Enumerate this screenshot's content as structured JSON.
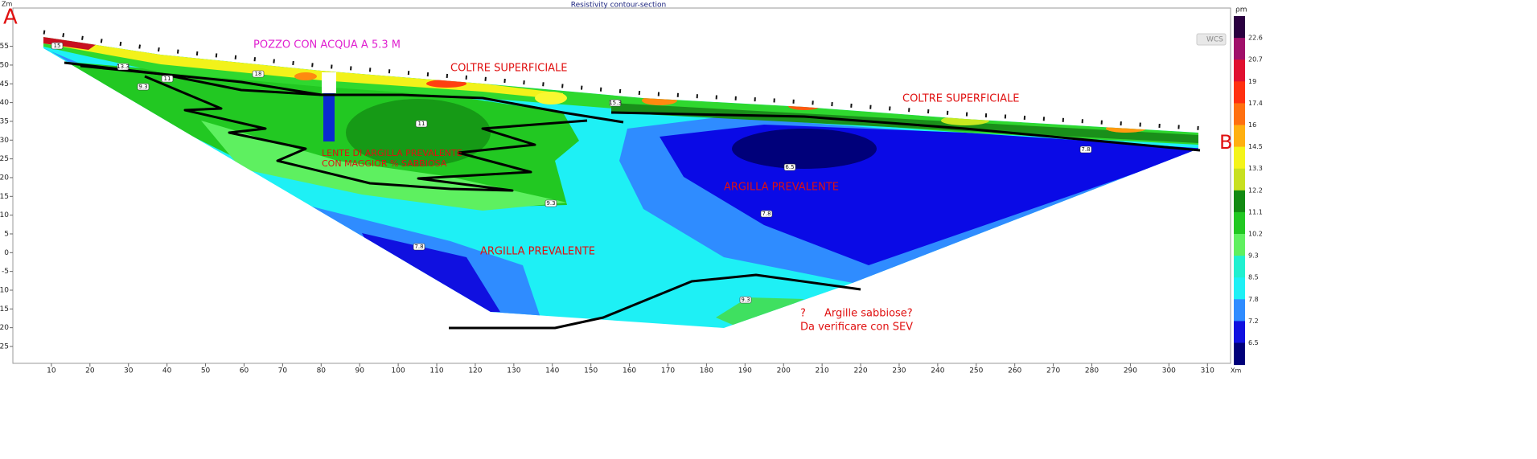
{
  "chart_data": {
    "type": "contour",
    "title": "Resistivity contour-section",
    "x_label": "Xm",
    "y_label": "Zm",
    "colorbar_label": "ρm",
    "button": "WCS",
    "xlim": [
      0,
      316
    ],
    "ylim": [
      -29.5,
      65.2
    ],
    "xticks": [
      10,
      20,
      30,
      40,
      50,
      60,
      70,
      80,
      90,
      100,
      110,
      120,
      130,
      140,
      150,
      160,
      170,
      180,
      190,
      200,
      210,
      220,
      230,
      240,
      250,
      260,
      270,
      280,
      290,
      300,
      310
    ],
    "yticks": [
      55,
      50,
      45,
      40,
      35,
      30,
      25,
      20,
      15,
      10,
      5,
      0,
      -5,
      -10,
      -15,
      -20,
      -25
    ],
    "colorbar_ticks": [
      22.6,
      20.7,
      19,
      17.4,
      16,
      14.5,
      13.3,
      12.2,
      11.1,
      10.2,
      9.3,
      8.5,
      7.8,
      7.2,
      6.5
    ],
    "end_labels": [
      "A",
      "B"
    ],
    "annotations": [
      "POZZO CON ACQUA A 5.3 M",
      "COLTRE SUPERFICIALE",
      "COLTRE SUPERFICIALE",
      "LENTE DI ARGILLA  PREVALENTE",
      "CON MAGGIOR % SABBIOSA",
      "ARGILLA PREVALENTE",
      "ARGILLA PREVALENTE",
      "?",
      "Argille sabbiose?",
      "Da verificare con SEV"
    ],
    "contour_labels": [
      "15",
      "13.3",
      "11",
      "9.3",
      "18",
      "11",
      "15.3",
      "7.8",
      "6.5",
      "9.3",
      "7.8",
      "7.8",
      "9.3"
    ]
  }
}
